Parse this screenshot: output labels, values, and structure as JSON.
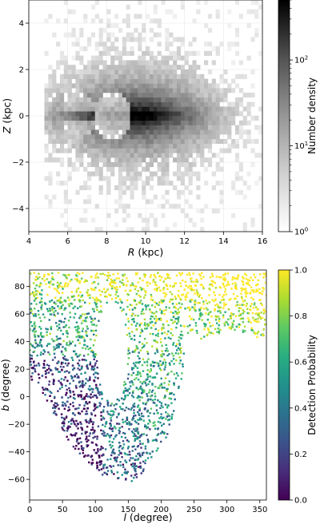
{
  "chart_data": [
    {
      "type": "heatmap",
      "title": "",
      "xlabel_var": "R",
      "xlabel_unit": " (kpc)",
      "ylabel_var": "Z",
      "ylabel_unit": " (kpc)",
      "xlim": [
        4,
        16
      ],
      "ylim": [
        -5,
        5
      ],
      "x_ticks": [
        4,
        6,
        8,
        10,
        12,
        14,
        16
      ],
      "y_ticks": [
        -4,
        -2,
        0,
        2,
        4
      ],
      "x_tick_labels": [
        "4",
        "6",
        "8",
        "10",
        "12",
        "14",
        "16"
      ],
      "y_tick_labels": [
        "−4",
        "−2",
        "0",
        "2",
        "4"
      ],
      "grid": true,
      "colorbar": {
        "label": "Number density",
        "scale": "log",
        "range": [
          1,
          500
        ],
        "colormap": "Greys",
        "tick_values": [
          1,
          10,
          100
        ],
        "tick_bases": [
          "10",
          "10",
          "10"
        ],
        "tick_exponents": [
          "0",
          "1",
          "2"
        ]
      },
      "description_features": {
        "sun_position": [
          8.3,
          0.0
        ],
        "max_density_region": [
          9.2,
          0.1
        ]
      }
    },
    {
      "type": "scatter",
      "title": "",
      "xlabel_var": "l",
      "xlabel_unit": " (degree)",
      "ylabel_var": "b",
      "ylabel_unit": " (degree)",
      "xlim": [
        0,
        360
      ],
      "ylim": [
        -75,
        92
      ],
      "x_ticks": [
        0,
        50,
        100,
        150,
        200,
        250,
        300,
        350
      ],
      "y_ticks": [
        -60,
        -40,
        -20,
        0,
        20,
        40,
        60,
        80
      ],
      "x_tick_labels": [
        "0",
        "50",
        "100",
        "150",
        "200",
        "250",
        "300",
        "350"
      ],
      "y_tick_labels": [
        "−60",
        "−40",
        "−20",
        "0",
        "20",
        "40",
        "60",
        "80"
      ],
      "grid": false,
      "colorbar": {
        "label": "Detection Probability",
        "scale": "linear",
        "range": [
          0.0,
          1.0
        ],
        "colormap": "viridis",
        "tick_values": [
          0.0,
          0.2,
          0.4,
          0.6,
          0.8,
          1.0
        ],
        "tick_labels": [
          "0.0",
          "0.2",
          "0.4",
          "0.6",
          "0.8",
          "1.0"
        ]
      }
    }
  ]
}
